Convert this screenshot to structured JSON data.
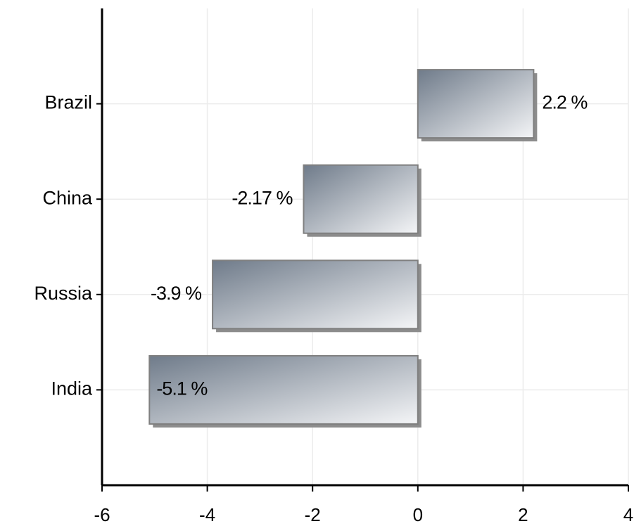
{
  "chart_data": {
    "type": "bar",
    "orientation": "horizontal",
    "categories": [
      "Brazil",
      "China",
      "Russia",
      "India"
    ],
    "values": [
      2.2,
      -2.17,
      -3.9,
      -5.1
    ],
    "value_labels": [
      "2.2 %",
      "-2.17 %",
      "-3.9 %",
      "-5.1 %"
    ],
    "color": "#6f7b8a",
    "xlim": [
      -6,
      4
    ],
    "xticks": [
      -6,
      -4,
      -2,
      0,
      2,
      4
    ],
    "grid": true
  }
}
